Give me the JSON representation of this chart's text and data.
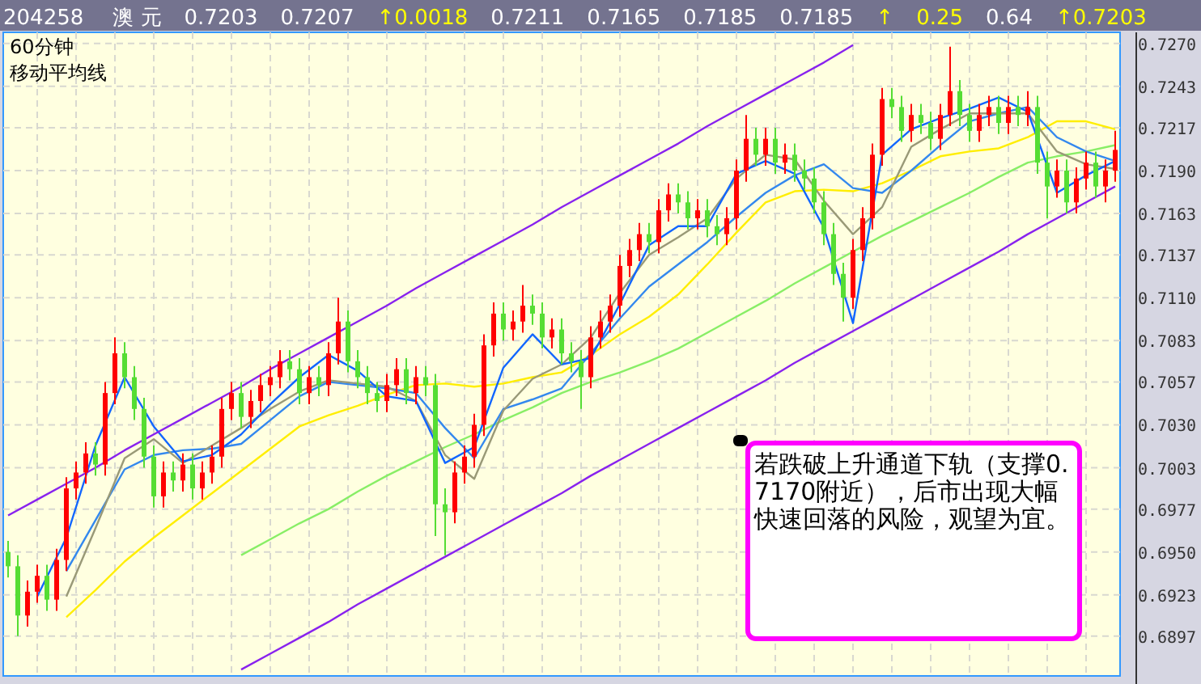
{
  "chart_data": [
    {
      "type": "candlestick",
      "categories": [
        null,
        null,
        null,
        null,
        null,
        null,
        null,
        null,
        null,
        null,
        null,
        null,
        null,
        null,
        null,
        null,
        null,
        null,
        null,
        null,
        null,
        null,
        null,
        null,
        null,
        null,
        null,
        null,
        null,
        null,
        null,
        null,
        null,
        null,
        null,
        null,
        null,
        null,
        null,
        null,
        null,
        null,
        null,
        null,
        null,
        null,
        null,
        null,
        null,
        null,
        null,
        null,
        null,
        null,
        null,
        null,
        null,
        null,
        null,
        null,
        null,
        null,
        null,
        null,
        null,
        null,
        null,
        null,
        null,
        null,
        null,
        null,
        null,
        null,
        null,
        null,
        null,
        null,
        null,
        null,
        null,
        null,
        null,
        null,
        null,
        null,
        null,
        null,
        null,
        null,
        null,
        null,
        null,
        null,
        null,
        null,
        null,
        null,
        null,
        null,
        null,
        null,
        null,
        null,
        null,
        null,
        null,
        null,
        null,
        null,
        null,
        null,
        null,
        null,
        null
      ],
      "ohlc": [
        [
          0.695,
          0.6957,
          0.6934,
          0.6941
        ],
        [
          0.6941,
          0.6948,
          0.6897,
          0.691
        ],
        [
          0.691,
          0.6932,
          0.6903,
          0.6925
        ],
        [
          0.6925,
          0.6942,
          0.6918,
          0.6935
        ],
        [
          0.6935,
          0.6942,
          0.6913,
          0.692
        ],
        [
          0.692,
          0.6952,
          0.6913,
          0.6945
        ],
        [
          0.6945,
          0.6997,
          0.6938,
          0.699
        ],
        [
          0.699,
          0.7007,
          0.6983,
          0.7
        ],
        [
          0.7,
          0.7019,
          0.6993,
          0.7012
        ],
        [
          0.7012,
          0.7019,
          0.6998,
          0.7005
        ],
        [
          0.7005,
          0.7057,
          0.6998,
          0.705
        ],
        [
          0.705,
          0.7085,
          0.7043,
          0.7075
        ],
        [
          0.7075,
          0.7082,
          0.7053,
          0.706
        ],
        [
          0.706,
          0.7067,
          0.7033,
          0.704
        ],
        [
          0.704,
          0.7047,
          0.7003,
          0.701
        ],
        [
          0.701,
          0.7017,
          0.6978,
          0.6985
        ],
        [
          0.6985,
          0.7007,
          0.6978,
          0.7
        ],
        [
          0.7,
          0.7007,
          0.6988,
          0.6995
        ],
        [
          0.6995,
          0.7012,
          0.6988,
          0.7005
        ],
        [
          0.7005,
          0.7012,
          0.6983,
          0.699
        ],
        [
          0.699,
          0.7007,
          0.6983,
          0.7
        ],
        [
          0.7,
          0.7017,
          0.6993,
          0.701
        ],
        [
          0.701,
          0.7047,
          0.7003,
          0.704
        ],
        [
          0.704,
          0.7057,
          0.7033,
          0.705
        ],
        [
          0.705,
          0.7057,
          0.7028,
          0.7035
        ],
        [
          0.7035,
          0.7052,
          0.7028,
          0.7045
        ],
        [
          0.7045,
          0.7062,
          0.7038,
          0.7055
        ],
        [
          0.7055,
          0.7067,
          0.7048,
          0.706
        ],
        [
          0.706,
          0.7077,
          0.7053,
          0.707
        ],
        [
          0.707,
          0.7077,
          0.7058,
          0.7065
        ],
        [
          0.7065,
          0.7072,
          0.7043,
          0.705
        ],
        [
          0.705,
          0.7067,
          0.7043,
          0.706
        ],
        [
          0.706,
          0.7067,
          0.7048,
          0.7055
        ],
        [
          0.7055,
          0.7082,
          0.7048,
          0.7075
        ],
        [
          0.7075,
          0.711,
          0.7068,
          0.7095
        ],
        [
          0.7095,
          0.7102,
          0.7063,
          0.707
        ],
        [
          0.707,
          0.7077,
          0.7053,
          0.706
        ],
        [
          0.706,
          0.7067,
          0.7043,
          0.705
        ],
        [
          0.705,
          0.7057,
          0.7038,
          0.7045
        ],
        [
          0.7045,
          0.7062,
          0.7038,
          0.7055
        ],
        [
          0.7055,
          0.7072,
          0.7048,
          0.7065
        ],
        [
          0.7065,
          0.7072,
          0.7043,
          0.705
        ],
        [
          0.705,
          0.7067,
          0.7043,
          0.706
        ],
        [
          0.706,
          0.7067,
          0.7048,
          0.7055
        ],
        [
          0.7055,
          0.7062,
          0.696,
          0.698
        ],
        [
          0.698,
          0.699,
          0.6948,
          0.6975
        ],
        [
          0.6975,
          0.7007,
          0.6968,
          0.7
        ],
        [
          0.7,
          0.7017,
          0.6993,
          0.701
        ],
        [
          0.701,
          0.7037,
          0.7003,
          0.703
        ],
        [
          0.703,
          0.7087,
          0.7023,
          0.708
        ],
        [
          0.708,
          0.7107,
          0.7073,
          0.71
        ],
        [
          0.71,
          0.7107,
          0.7083,
          0.709
        ],
        [
          0.709,
          0.7102,
          0.7083,
          0.7095
        ],
        [
          0.7095,
          0.7118,
          0.7088,
          0.7105
        ],
        [
          0.7105,
          0.7112,
          0.7093,
          0.71
        ],
        [
          0.71,
          0.7107,
          0.7078,
          0.7085
        ],
        [
          0.7085,
          0.7097,
          0.7078,
          0.709
        ],
        [
          0.709,
          0.7097,
          0.7068,
          0.7075
        ],
        [
          0.7075,
          0.7082,
          0.7063,
          0.707
        ],
        [
          0.707,
          0.7077,
          0.704,
          0.706
        ],
        [
          0.706,
          0.7092,
          0.7053,
          0.7085
        ],
        [
          0.7085,
          0.7102,
          0.7078,
          0.7095
        ],
        [
          0.7095,
          0.7112,
          0.7088,
          0.7105
        ],
        [
          0.7105,
          0.7137,
          0.7098,
          0.713
        ],
        [
          0.713,
          0.7147,
          0.7123,
          0.714
        ],
        [
          0.714,
          0.7157,
          0.7133,
          0.715
        ],
        [
          0.715,
          0.7157,
          0.7138,
          0.7145
        ],
        [
          0.7145,
          0.7172,
          0.7138,
          0.7165
        ],
        [
          0.7165,
          0.7182,
          0.7158,
          0.7175
        ],
        [
          0.7175,
          0.7182,
          0.7163,
          0.717
        ],
        [
          0.717,
          0.7177,
          0.7153,
          0.716
        ],
        [
          0.716,
          0.7172,
          0.7153,
          0.7165
        ],
        [
          0.7165,
          0.7172,
          0.7148,
          0.7155
        ],
        [
          0.7155,
          0.7162,
          0.7143,
          0.715
        ],
        [
          0.715,
          0.7167,
          0.7143,
          0.716
        ],
        [
          0.716,
          0.7197,
          0.7153,
          0.719
        ],
        [
          0.719,
          0.7225,
          0.7183,
          0.721
        ],
        [
          0.721,
          0.7217,
          0.7193,
          0.72
        ],
        [
          0.72,
          0.7217,
          0.7193,
          0.721
        ],
        [
          0.721,
          0.7217,
          0.7188,
          0.7195
        ],
        [
          0.7195,
          0.7207,
          0.7188,
          0.72
        ],
        [
          0.72,
          0.7207,
          0.7183,
          0.719
        ],
        [
          0.719,
          0.7197,
          0.7178,
          0.7185
        ],
        [
          0.7185,
          0.7192,
          0.7163,
          0.717
        ],
        [
          0.717,
          0.7177,
          0.7143,
          0.715
        ],
        [
          0.715,
          0.7157,
          0.7118,
          0.7125
        ],
        [
          0.7125,
          0.7132,
          0.7095,
          0.711
        ],
        [
          0.711,
          0.7147,
          0.7103,
          0.714
        ],
        [
          0.714,
          0.7167,
          0.7133,
          0.716
        ],
        [
          0.716,
          0.7207,
          0.7153,
          0.72
        ],
        [
          0.72,
          0.7242,
          0.7193,
          0.7235
        ],
        [
          0.7235,
          0.7242,
          0.7223,
          0.723
        ],
        [
          0.723,
          0.7237,
          0.7208,
          0.7215
        ],
        [
          0.7215,
          0.7232,
          0.7208,
          0.7225
        ],
        [
          0.7225,
          0.7232,
          0.7213,
          0.722
        ],
        [
          0.722,
          0.7227,
          0.7203,
          0.721
        ],
        [
          0.721,
          0.7232,
          0.7203,
          0.7225
        ],
        [
          0.7225,
          0.7268,
          0.7218,
          0.724
        ],
        [
          0.724,
          0.7247,
          0.7218,
          0.7225
        ],
        [
          0.7225,
          0.7232,
          0.7208,
          0.7215
        ],
        [
          0.7215,
          0.7232,
          0.7208,
          0.7225
        ],
        [
          0.7225,
          0.7237,
          0.7218,
          0.723
        ],
        [
          0.723,
          0.7237,
          0.7213,
          0.722
        ],
        [
          0.722,
          0.7237,
          0.7213,
          0.723
        ],
        [
          0.723,
          0.7237,
          0.7218,
          0.7225
        ],
        [
          0.7225,
          0.724,
          0.7218,
          0.723
        ],
        [
          0.723,
          0.7237,
          0.7188,
          0.7195
        ],
        [
          0.7195,
          0.7202,
          0.716,
          0.718
        ],
        [
          0.718,
          0.7197,
          0.7173,
          0.719
        ],
        [
          0.719,
          0.7197,
          0.7163,
          0.717
        ],
        [
          0.717,
          0.7192,
          0.7163,
          0.7185
        ],
        [
          0.7185,
          0.7202,
          0.7178,
          0.7195
        ],
        [
          0.7195,
          0.7202,
          0.7173,
          0.718
        ],
        [
          0.718,
          0.7197,
          0.717,
          0.719
        ],
        [
          0.719,
          0.7215,
          0.7183,
          0.7203
        ]
      ],
      "colors": [
        "#55dd33",
        "#55dd33",
        "#ff0000",
        "#ff0000",
        "#55dd33",
        "#ff0000",
        "#ff0000",
        "#ff0000",
        "#ff0000",
        "#55dd33",
        "#ff0000",
        "#ff0000",
        "#55dd33",
        "#55dd33",
        "#55dd33",
        "#55dd33",
        "#ff0000",
        "#55dd33",
        "#ff0000",
        "#55dd33",
        "#ff0000",
        "#ff0000",
        "#ff0000",
        "#ff0000",
        "#55dd33",
        "#ff0000",
        "#ff0000",
        "#ff0000",
        "#ff0000",
        "#55dd33",
        "#55dd33",
        "#ff0000",
        "#55dd33",
        "#ff0000",
        "#ff0000",
        "#55dd33",
        "#55dd33",
        "#55dd33",
        "#55dd33",
        "#ff0000",
        "#ff0000",
        "#55dd33",
        "#ff0000",
        "#55dd33",
        "#55dd33",
        "#55dd33",
        "#ff0000",
        "#ff0000",
        "#ff0000",
        "#ff0000",
        "#ff0000",
        "#55dd33",
        "#ff0000",
        "#ff0000",
        "#55dd33",
        "#55dd33",
        "#ff0000",
        "#55dd33",
        "#55dd33",
        "#55dd33",
        "#ff0000",
        "#ff0000",
        "#ff0000",
        "#ff0000",
        "#ff0000",
        "#ff0000",
        "#55dd33",
        "#ff0000",
        "#ff0000",
        "#55dd33",
        "#55dd33",
        "#ff0000",
        "#55dd33",
        "#55dd33",
        "#ff0000",
        "#ff0000",
        "#ff0000",
        "#55dd33",
        "#ff0000",
        "#55dd33",
        "#ff0000",
        "#55dd33",
        "#55dd33",
        "#55dd33",
        "#55dd33",
        "#55dd33",
        "#55dd33",
        "#ff0000",
        "#ff0000",
        "#ff0000",
        "#ff0000",
        "#55dd33",
        "#55dd33",
        "#ff0000",
        "#55dd33",
        "#55dd33",
        "#ff0000",
        "#ff0000",
        "#55dd33",
        "#55dd33",
        "#ff0000",
        "#ff0000",
        "#55dd33",
        "#ff0000",
        "#55dd33",
        "#ff0000",
        "#55dd33",
        "#55dd33",
        "#ff0000",
        "#55dd33",
        "#ff0000",
        "#ff0000",
        "#55dd33",
        "#ff0000",
        "#ff0000"
      ],
      "ylim": [
        0.6872,
        0.7277
      ],
      "yticks": [
        {
          "value": 0.727,
          "label": "0.7270"
        },
        {
          "value": 0.7243,
          "label": "0.7243"
        },
        {
          "value": 0.7217,
          "label": "0.7217"
        },
        {
          "value": 0.719,
          "label": "0.7190"
        },
        {
          "value": 0.7163,
          "label": "0.7163"
        },
        {
          "value": 0.7137,
          "label": "0.7137"
        },
        {
          "value": 0.711,
          "label": "0.7110"
        },
        {
          "value": 0.7083,
          "label": "0.7083"
        },
        {
          "value": 0.7057,
          "label": "0.7057"
        },
        {
          "value": 0.703,
          "label": "0.7030"
        },
        {
          "value": 0.7003,
          "label": "0.7003"
        },
        {
          "value": 0.6977,
          "label": "0.6977"
        },
        {
          "value": 0.695,
          "label": "0.6950"
        },
        {
          "value": 0.6923,
          "label": "0.6923"
        },
        {
          "value": 0.6897,
          "label": "0.6897"
        }
      ],
      "tick_labels": "y",
      "grid": true,
      "annotations": [
        "204258",
        "澳 元",
        "0.7203",
        "0.7207",
        "↑0.0018",
        "0.7211",
        "0.7165",
        "0.7185",
        "0.7185",
        "↑",
        "0.25",
        "0.64",
        "↑0.7203",
        "60分钟",
        "移动平均线",
        "若跌破上升通道下轨（支撑0.7170附近），后市出现大幅快速回落的风险，观望为宜。"
      ]
    },
    {
      "type": "line",
      "categories": [
        null,
        null,
        null,
        null,
        null,
        null,
        null,
        null,
        null,
        null,
        null,
        null,
        null,
        null,
        null,
        null,
        null,
        null,
        null,
        null,
        null,
        null,
        null,
        null,
        null,
        null,
        null,
        null,
        null,
        null,
        null,
        null,
        null,
        null,
        null,
        null,
        null,
        null,
        null
      ],
      "series": [
        {
          "color": "#ffee00",
          "values": [
            null,
            null,
            0.6909,
            0.6926,
            0.6944,
            0.6959,
            0.6973,
            0.6987,
            0.7001,
            0.7015,
            0.7029,
            0.7036,
            0.7042,
            0.7049,
            0.7055,
            0.7056,
            0.7054,
            0.7056,
            0.706,
            0.7063,
            0.7074,
            0.7087,
            0.7098,
            0.7112,
            0.7131,
            0.7151,
            0.717,
            0.7177,
            0.7178,
            0.7177,
            0.7182,
            0.719,
            0.7199,
            0.7202,
            0.7204,
            0.7211,
            0.7221,
            0.7221,
            0.7216
          ]
        },
        {
          "color": "#88ee66",
          "values": [
            null,
            null,
            null,
            null,
            null,
            null,
            null,
            null,
            0.6948,
            0.6958,
            0.6968,
            0.6977,
            0.6988,
            0.6998,
            0.7007,
            0.7016,
            0.7024,
            0.7033,
            0.7041,
            0.705,
            0.7057,
            0.7063,
            0.707,
            0.7078,
            0.7088,
            0.7098,
            0.7108,
            0.7119,
            0.7129,
            0.7139,
            0.7149,
            0.7158,
            0.7167,
            0.7176,
            0.7186,
            0.7195,
            0.7199,
            0.7202,
            0.7206
          ]
        },
        {
          "color": "#3388ee",
          "values": [
            null,
            null,
            0.6938,
            0.697,
            0.7002,
            0.7011,
            0.7014,
            0.7015,
            0.7018,
            0.7033,
            0.7048,
            0.7057,
            0.7055,
            0.7053,
            0.705,
            0.7028,
            0.7009,
            0.704,
            0.7046,
            0.7053,
            0.7075,
            0.7097,
            0.7117,
            0.7131,
            0.7145,
            0.7161,
            0.7176,
            0.7187,
            0.7194,
            0.7179,
            0.7176,
            0.719,
            0.7206,
            0.7221,
            0.7226,
            0.723,
            0.7211,
            0.7202,
            0.7196
          ]
        },
        {
          "color": "#999977",
          "values": [
            null,
            null,
            0.6922,
            0.6965,
            0.7009,
            0.7021,
            0.7006,
            0.7017,
            0.7028,
            0.704,
            0.7051,
            0.7058,
            0.7056,
            0.7054,
            0.7045,
            0.7011,
            0.6996,
            0.7039,
            0.7059,
            0.7068,
            0.7085,
            0.7113,
            0.7137,
            0.7148,
            0.716,
            0.7185,
            0.72,
            0.7197,
            0.7171,
            0.715,
            0.7167,
            0.7205,
            0.7216,
            0.7226,
            0.7226,
            0.7226,
            0.7202,
            0.7194,
            0.7191
          ]
        },
        {
          "color": "#1166ff",
          "values": [
            null,
            0.6922,
            0.6959,
            0.7017,
            0.706,
            0.7029,
            0.7007,
            0.7011,
            0.7024,
            0.7043,
            0.706,
            0.7074,
            0.7064,
            0.7048,
            0.7045,
            0.7006,
            0.7016,
            0.7066,
            0.7087,
            0.7068,
            0.7072,
            0.7106,
            0.7143,
            0.7155,
            0.7155,
            0.7188,
            0.7196,
            0.7188,
            0.7154,
            0.7094,
            0.72,
            0.7216,
            0.7223,
            0.7229,
            0.7236,
            0.7227,
            0.7176,
            0.7187,
            0.7196
          ]
        },
        {
          "color": "#8822ee",
          "values": [
            0.6973,
            0.6983,
            0.6993,
            0.7003,
            0.7014,
            0.7024,
            0.7034,
            0.7044,
            0.7054,
            0.7065,
            0.7075,
            0.7085,
            0.7095,
            0.7105,
            0.7116,
            0.7126,
            0.7136,
            0.7146,
            0.7156,
            0.7167,
            0.7177,
            0.7187,
            0.7197,
            0.7207,
            0.7218,
            0.7228,
            0.7238,
            0.7248,
            0.7258,
            0.7269,
            null,
            null,
            null,
            null,
            null,
            null,
            null,
            null,
            null
          ]
        },
        {
          "color": "#8822ee",
          "values": [
            null,
            null,
            null,
            null,
            null,
            null,
            null,
            null,
            0.6876,
            0.6886,
            0.6896,
            0.6906,
            0.6917,
            0.6927,
            0.6937,
            0.6947,
            0.6957,
            0.6967,
            0.6977,
            0.6987,
            0.6998,
            0.7008,
            0.7018,
            0.7028,
            0.7038,
            0.7048,
            0.7058,
            0.7069,
            0.7079,
            0.7089,
            0.7099,
            0.7109,
            0.7119,
            0.7129,
            0.7139,
            0.715,
            0.716,
            0.717,
            0.718
          ]
        }
      ],
      "ylim": [
        0.6872,
        0.7277
      ],
      "tick_labels": false
    }
  ]
}
